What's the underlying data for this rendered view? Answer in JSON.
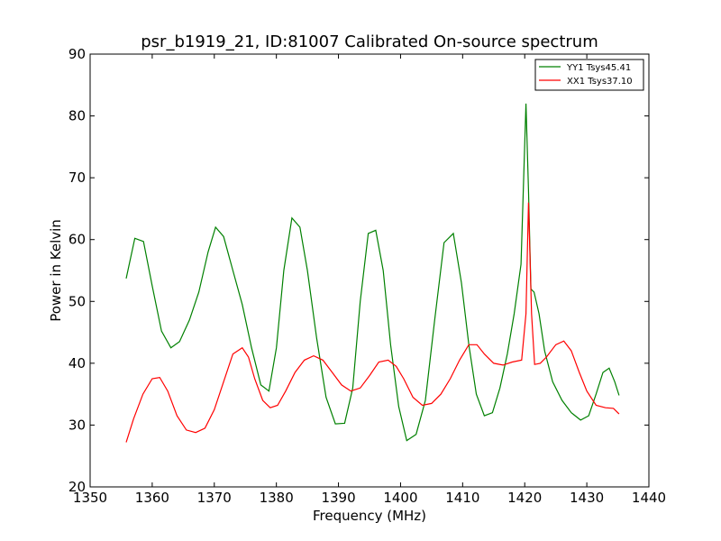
{
  "chart_data": {
    "type": "line",
    "title": "psr_b1919_21, ID:81007 Calibrated On-source spectrum",
    "xlabel": "Frequency (MHz)",
    "ylabel": "Power in Kelvin",
    "xlim": [
      1350,
      1440
    ],
    "ylim": [
      20,
      90
    ],
    "xticks": [
      1350,
      1360,
      1370,
      1380,
      1390,
      1400,
      1410,
      1420,
      1430,
      1440
    ],
    "yticks": [
      20,
      30,
      40,
      50,
      60,
      70,
      80,
      90
    ],
    "grid": false,
    "legend_position": "top-right",
    "series": [
      {
        "name": "YY1 Tsys45.41",
        "color": "#008000",
        "x": [
          1355.8,
          1357.2,
          1358.6,
          1360.0,
          1361.5,
          1363.0,
          1364.4,
          1366.0,
          1367.5,
          1369.0,
          1370.2,
          1371.5,
          1373.0,
          1374.5,
          1376.0,
          1377.5,
          1378.8,
          1380.0,
          1381.2,
          1382.5,
          1383.8,
          1385.0,
          1386.5,
          1388.0,
          1389.5,
          1391.0,
          1392.3,
          1393.5,
          1394.8,
          1396.0,
          1397.2,
          1398.4,
          1399.7,
          1401.0,
          1402.5,
          1404.0,
          1405.5,
          1407.0,
          1408.5,
          1409.8,
          1411.0,
          1412.2,
          1413.5,
          1414.8,
          1416.0,
          1417.2,
          1418.3,
          1419.4,
          1420.2,
          1420.6,
          1421.0,
          1421.5,
          1422.3,
          1423.2,
          1424.5,
          1426.0,
          1427.5,
          1429.0,
          1430.3,
          1431.5,
          1432.6,
          1433.6,
          1434.5,
          1435.2
        ],
        "values": [
          53.7,
          60.2,
          59.7,
          52.5,
          45.2,
          42.5,
          43.5,
          47.0,
          51.5,
          58.0,
          62.0,
          60.5,
          55.0,
          49.5,
          42.5,
          36.5,
          35.5,
          42.5,
          55.0,
          63.5,
          62.0,
          55.0,
          44.0,
          34.5,
          30.2,
          30.3,
          36.0,
          50.0,
          61.0,
          61.5,
          55.0,
          43.0,
          33.0,
          27.5,
          28.5,
          34.0,
          47.0,
          59.5,
          61.0,
          53.0,
          43.0,
          35.0,
          31.5,
          32.0,
          36.0,
          41.5,
          48.0,
          56.0,
          82.0,
          68.0,
          52.0,
          51.5,
          48.0,
          42.0,
          37.0,
          34.0,
          32.0,
          30.8,
          31.5,
          35.0,
          38.5,
          39.2,
          37.0,
          34.8
        ]
      },
      {
        "name": "XX1 Tsys37.10",
        "color": "#ff0000",
        "x": [
          1355.8,
          1357.0,
          1358.5,
          1360.0,
          1361.2,
          1362.5,
          1364.0,
          1365.5,
          1367.0,
          1368.5,
          1370.0,
          1371.5,
          1373.0,
          1374.5,
          1375.5,
          1376.5,
          1377.8,
          1379.0,
          1380.2,
          1381.5,
          1383.0,
          1384.5,
          1386.0,
          1387.5,
          1389.0,
          1390.5,
          1392.0,
          1393.5,
          1395.0,
          1396.5,
          1398.0,
          1399.3,
          1400.5,
          1402.0,
          1403.5,
          1405.0,
          1406.5,
          1408.0,
          1409.5,
          1411.0,
          1412.3,
          1413.5,
          1415.0,
          1416.5,
          1418.0,
          1419.5,
          1420.2,
          1420.6,
          1421.1,
          1421.6,
          1422.5,
          1423.5,
          1425.0,
          1426.3,
          1427.5,
          1428.8,
          1430.0,
          1431.5,
          1433.0,
          1434.3,
          1435.2
        ],
        "values": [
          27.2,
          31.0,
          35.0,
          37.5,
          37.7,
          35.5,
          31.5,
          29.2,
          28.8,
          29.5,
          32.5,
          37.0,
          41.5,
          42.5,
          41.0,
          37.5,
          34.0,
          32.8,
          33.2,
          35.5,
          38.5,
          40.5,
          41.2,
          40.5,
          38.5,
          36.5,
          35.5,
          36.0,
          38.0,
          40.2,
          40.5,
          39.5,
          37.5,
          34.5,
          33.2,
          33.5,
          35.0,
          37.5,
          40.5,
          43.0,
          43.0,
          41.5,
          40.0,
          39.7,
          40.2,
          40.5,
          48.0,
          66.0,
          48.0,
          39.8,
          40.0,
          41.0,
          43.0,
          43.6,
          42.0,
          38.5,
          35.5,
          33.2,
          32.8,
          32.7,
          31.8
        ]
      }
    ]
  }
}
